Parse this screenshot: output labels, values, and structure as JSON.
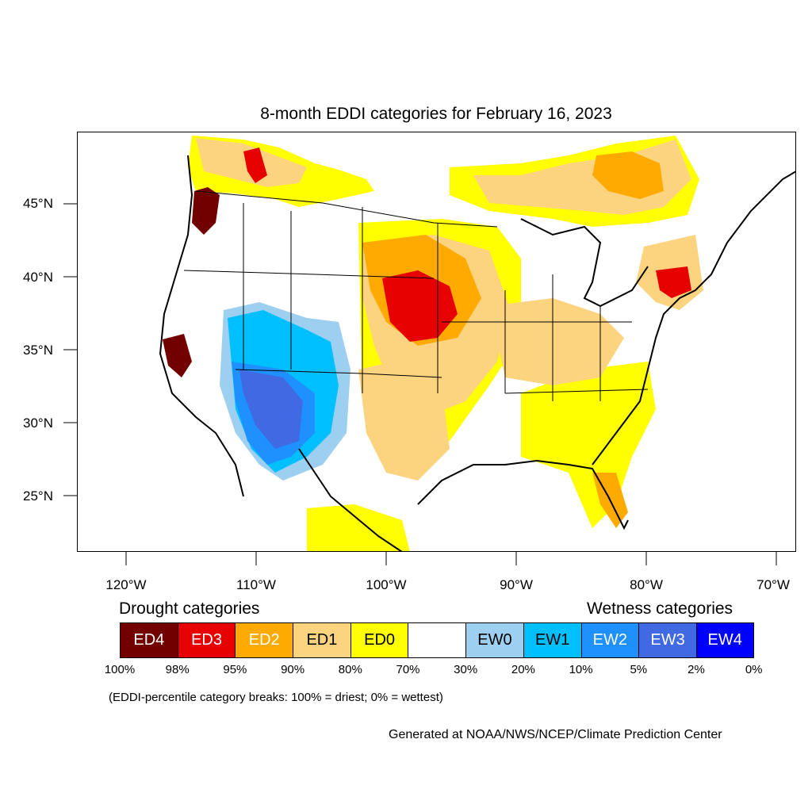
{
  "title": "8-month EDDI categories for February 16, 2023",
  "map": {
    "lat_ticks": [
      "45°N",
      "40°N",
      "35°N",
      "30°N",
      "25°N"
    ],
    "lon_ticks": [
      "120°W",
      "110°W",
      "100°W",
      "90°W",
      "80°W",
      "70°W"
    ]
  },
  "legend": {
    "drought_heading": "Drought categories",
    "wetness_heading": "Wetness categories",
    "categories": [
      {
        "label": "ED4",
        "color": "#730000",
        "text_color": "#ffffff"
      },
      {
        "label": "ED3",
        "color": "#e60000",
        "text_color": "#ffffff"
      },
      {
        "label": "ED2",
        "color": "#ffaa00",
        "text_color": "#ffffff"
      },
      {
        "label": "ED1",
        "color": "#fcd37f",
        "text_color": "#000000"
      },
      {
        "label": "ED0",
        "color": "#ffff00",
        "text_color": "#000000"
      },
      {
        "label": "",
        "color": "#ffffff",
        "text_color": "#000000"
      },
      {
        "label": "EW0",
        "color": "#9dd0f0",
        "text_color": "#000000"
      },
      {
        "label": "EW1",
        "color": "#00bfff",
        "text_color": "#000000"
      },
      {
        "label": "EW2",
        "color": "#1e90ff",
        "text_color": "#ffffff"
      },
      {
        "label": "EW3",
        "color": "#4169e1",
        "text_color": "#ffffff"
      },
      {
        "label": "EW4",
        "color": "#0000ff",
        "text_color": "#ffffff"
      }
    ],
    "percentiles": [
      "100%",
      "98%",
      "95%",
      "90%",
      "80%",
      "70%",
      "30%",
      "20%",
      "10%",
      "5%",
      "2%",
      "0%"
    ]
  },
  "note": "(EDDI-percentile category breaks: 100% = driest; 0% = wettest)",
  "credit": "Generated at NOAA/NWS/NCEP/Climate Prediction Center"
}
